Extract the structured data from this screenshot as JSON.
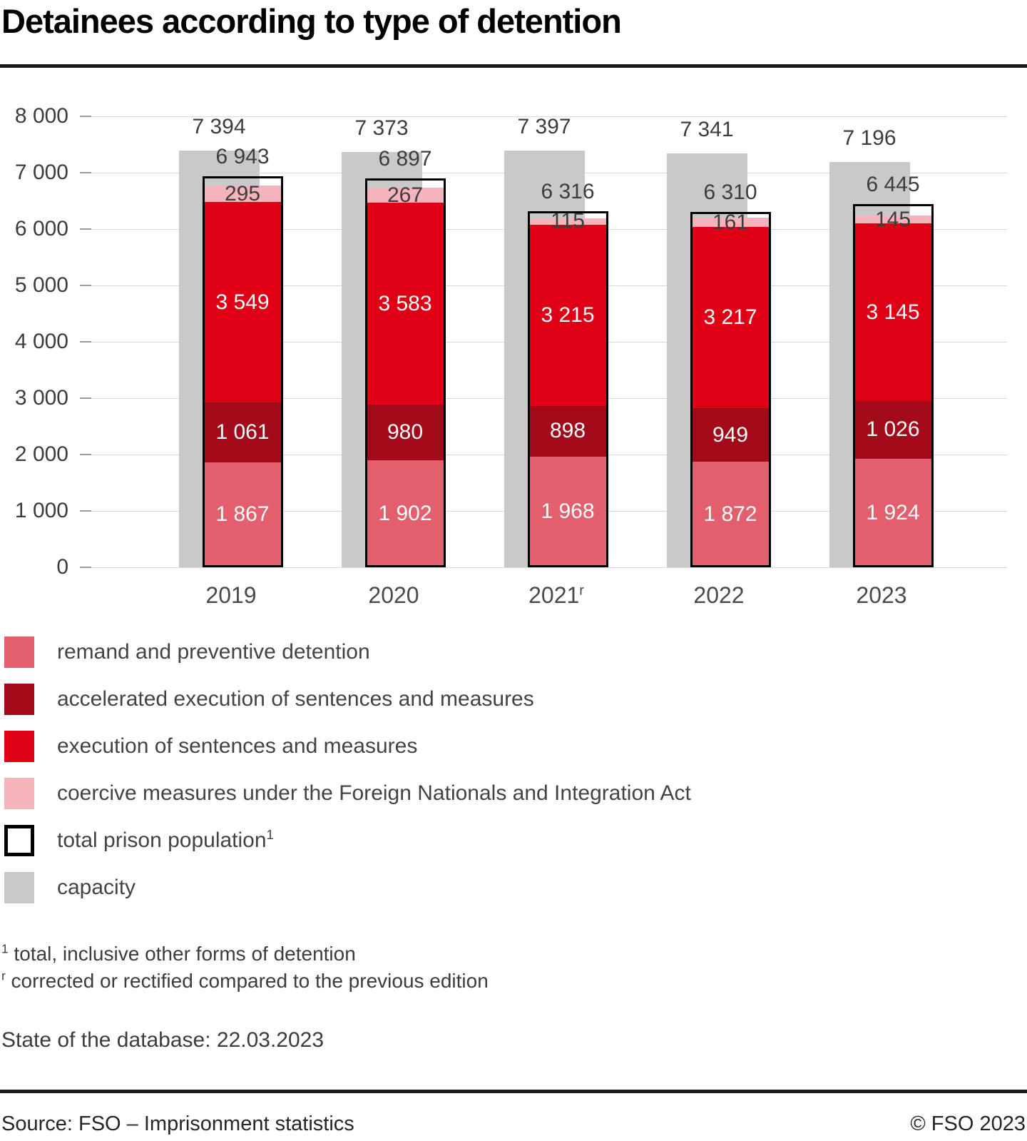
{
  "title": "Detainees according to type of detention",
  "chart_data": {
    "type": "bar",
    "stacked": true,
    "categories": [
      "2019",
      "2020",
      "2021",
      "2022",
      "2023"
    ],
    "category_sup": [
      "",
      "",
      "r",
      "",
      ""
    ],
    "series": [
      {
        "key": "remand",
        "name": "remand and preventive detention",
        "color": "#e45f6d",
        "label_color": "#ffffff",
        "values": [
          1867,
          1902,
          1968,
          1872,
          1924
        ]
      },
      {
        "key": "accelerated-execution",
        "name": "accelerated execution of sentences and measures",
        "color": "#a30b1a",
        "label_color": "#ffffff",
        "values": [
          1061,
          980,
          898,
          949,
          1026
        ]
      },
      {
        "key": "execution",
        "name": "execution of sentences and measures",
        "color": "#df0016",
        "label_color": "#ffffff",
        "values": [
          3549,
          3583,
          3215,
          3217,
          3145
        ]
      },
      {
        "key": "coercive-measures",
        "name": "coercive measures under the Foreign Nationals and Integration Act",
        "color": "#f5b3bc",
        "label_color": "#3d3d3d",
        "values": [
          295,
          267,
          115,
          161,
          145
        ]
      }
    ],
    "totals": {
      "key": "total-prison-population",
      "name": "total prison population",
      "sup": "1",
      "values": [
        6943,
        6897,
        6316,
        6310,
        6445
      ]
    },
    "capacity": {
      "key": "capacity",
      "name": "capacity",
      "color": "#c9c9c9",
      "values": [
        7394,
        7373,
        7397,
        7341,
        7196
      ]
    },
    "ylim": [
      0,
      8000
    ],
    "ytick_step": 1000,
    "grid": true,
    "legend_position": "bottom-left"
  },
  "legend": {
    "items": [
      {
        "key": "remand",
        "color": "#e45f6d",
        "border": "",
        "label": "remand and preventive detention",
        "sup": ""
      },
      {
        "key": "accelerated-execution",
        "color": "#a30b1a",
        "border": "",
        "label": "accelerated execution of sentences and measures",
        "sup": ""
      },
      {
        "key": "execution",
        "color": "#df0016",
        "border": "",
        "label": "execution of sentences and measures",
        "sup": ""
      },
      {
        "key": "coercive-measures",
        "color": "#f5b3bc",
        "border": "",
        "label": "coercive measures under the Foreign Nationals and Integration Act",
        "sup": ""
      },
      {
        "key": "total-prison-population",
        "color": "#ffffff",
        "border": "#000000",
        "label": "total prison population",
        "sup": "1"
      },
      {
        "key": "capacity",
        "color": "#c9c9c9",
        "border": "",
        "label": "capacity",
        "sup": ""
      }
    ]
  },
  "footnotes": [
    {
      "marker": "1",
      "text": "total, inclusive other forms of detention"
    },
    {
      "marker": "r",
      "text": "corrected or rectified compared to the previous edition"
    }
  ],
  "status_line": "State of the database: 22.03.2023",
  "source": "Source: FSO – Imprisonment statistics",
  "copyright": "© FSO 2023"
}
